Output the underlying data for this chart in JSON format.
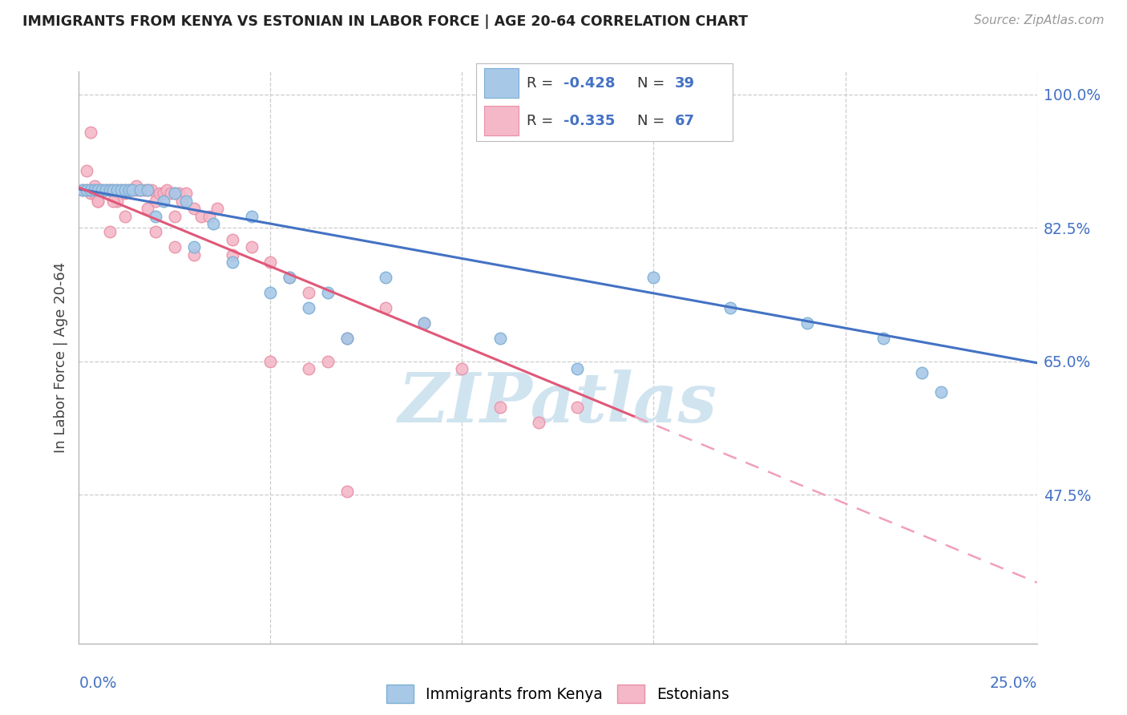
{
  "title": "IMMIGRANTS FROM KENYA VS ESTONIAN IN LABOR FORCE | AGE 20-64 CORRELATION CHART",
  "source": "Source: ZipAtlas.com",
  "ylabel": "In Labor Force | Age 20-64",
  "xlim": [
    0.0,
    0.25
  ],
  "ylim": [
    0.28,
    1.03
  ],
  "right_ytick_color": "#4472c4",
  "legend_color": "#4472c4",
  "kenya_color": "#a8c8e8",
  "estonian_color": "#f4b8c8",
  "kenya_edge": "#7bafd4",
  "estonian_edge": "#e890a8",
  "trend_blue": "#4472c4",
  "trend_pink": "#e05878",
  "trend_pink_dashed": "#f0a0b8",
  "watermark": "ZIPatlas",
  "watermark_color": "#d0e4f0",
  "kenya_scatter_x": [
    0.001,
    0.002,
    0.003,
    0.004,
    0.005,
    0.006,
    0.007,
    0.008,
    0.009,
    0.01,
    0.011,
    0.012,
    0.013,
    0.014,
    0.016,
    0.018,
    0.02,
    0.022,
    0.025,
    0.028,
    0.03,
    0.035,
    0.04,
    0.045,
    0.05,
    0.055,
    0.06,
    0.065,
    0.07,
    0.08,
    0.09,
    0.11,
    0.13,
    0.15,
    0.17,
    0.19,
    0.21,
    0.22,
    0.225
  ],
  "kenya_scatter_y": [
    0.875,
    0.875,
    0.875,
    0.875,
    0.875,
    0.875,
    0.875,
    0.875,
    0.875,
    0.875,
    0.875,
    0.875,
    0.875,
    0.875,
    0.875,
    0.875,
    0.84,
    0.86,
    0.87,
    0.86,
    0.8,
    0.83,
    0.78,
    0.84,
    0.74,
    0.76,
    0.72,
    0.74,
    0.68,
    0.76,
    0.7,
    0.68,
    0.64,
    0.76,
    0.72,
    0.7,
    0.68,
    0.635,
    0.61
  ],
  "estonian_scatter_x": [
    0.001,
    0.002,
    0.003,
    0.004,
    0.005,
    0.006,
    0.007,
    0.008,
    0.009,
    0.01,
    0.011,
    0.012,
    0.013,
    0.014,
    0.015,
    0.016,
    0.017,
    0.018,
    0.019,
    0.02,
    0.021,
    0.022,
    0.023,
    0.024,
    0.025,
    0.026,
    0.027,
    0.028,
    0.03,
    0.032,
    0.034,
    0.036,
    0.04,
    0.045,
    0.05,
    0.055,
    0.06,
    0.065,
    0.07,
    0.08,
    0.09,
    0.1,
    0.11,
    0.12,
    0.13,
    0.002,
    0.003,
    0.004,
    0.005,
    0.008,
    0.01,
    0.012,
    0.015,
    0.02,
    0.025,
    0.03,
    0.04,
    0.05,
    0.06,
    0.07,
    0.003,
    0.004,
    0.005,
    0.009,
    0.012,
    0.018,
    0.025
  ],
  "estonian_scatter_y": [
    0.875,
    0.875,
    0.875,
    0.875,
    0.875,
    0.875,
    0.875,
    0.875,
    0.875,
    0.875,
    0.875,
    0.875,
    0.875,
    0.875,
    0.875,
    0.875,
    0.875,
    0.875,
    0.875,
    0.86,
    0.87,
    0.87,
    0.875,
    0.87,
    0.87,
    0.87,
    0.86,
    0.87,
    0.85,
    0.84,
    0.84,
    0.85,
    0.81,
    0.8,
    0.78,
    0.76,
    0.74,
    0.65,
    0.68,
    0.72,
    0.7,
    0.64,
    0.59,
    0.57,
    0.59,
    0.9,
    0.87,
    0.88,
    0.86,
    0.82,
    0.86,
    0.87,
    0.88,
    0.82,
    0.8,
    0.79,
    0.79,
    0.65,
    0.64,
    0.48,
    0.95,
    0.87,
    0.86,
    0.86,
    0.84,
    0.85,
    0.84
  ]
}
